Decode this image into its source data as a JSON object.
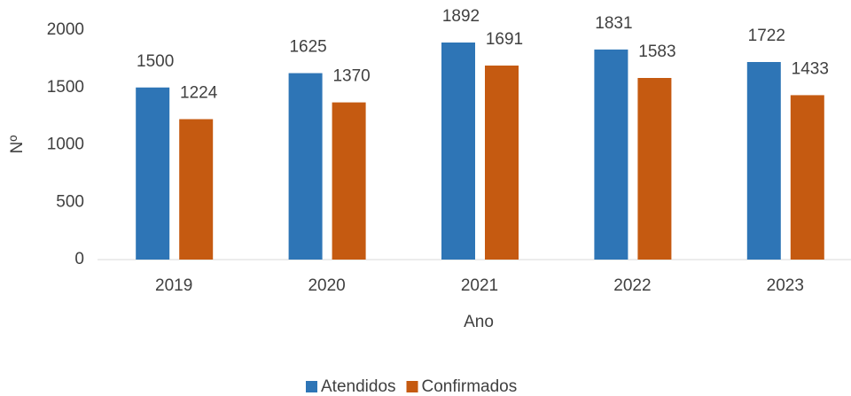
{
  "chart_data": {
    "type": "bar",
    "x_label": "Ano",
    "y_label": "Nº",
    "categories": [
      "2019",
      "2020",
      "2021",
      "2022",
      "2023"
    ],
    "series": [
      {
        "name": "Atendidos",
        "color": "#2e75b6",
        "values": [
          1500,
          1625,
          1892,
          1831,
          1722
        ]
      },
      {
        "name": "Confirmados",
        "color": "#c55a11",
        "values": [
          1224,
          1370,
          1691,
          1583,
          1433
        ]
      }
    ],
    "ylim": [
      0,
      2000
    ],
    "yticks": [
      0,
      500,
      1000,
      1500,
      2000
    ],
    "grid": false,
    "legend": "bottom"
  }
}
